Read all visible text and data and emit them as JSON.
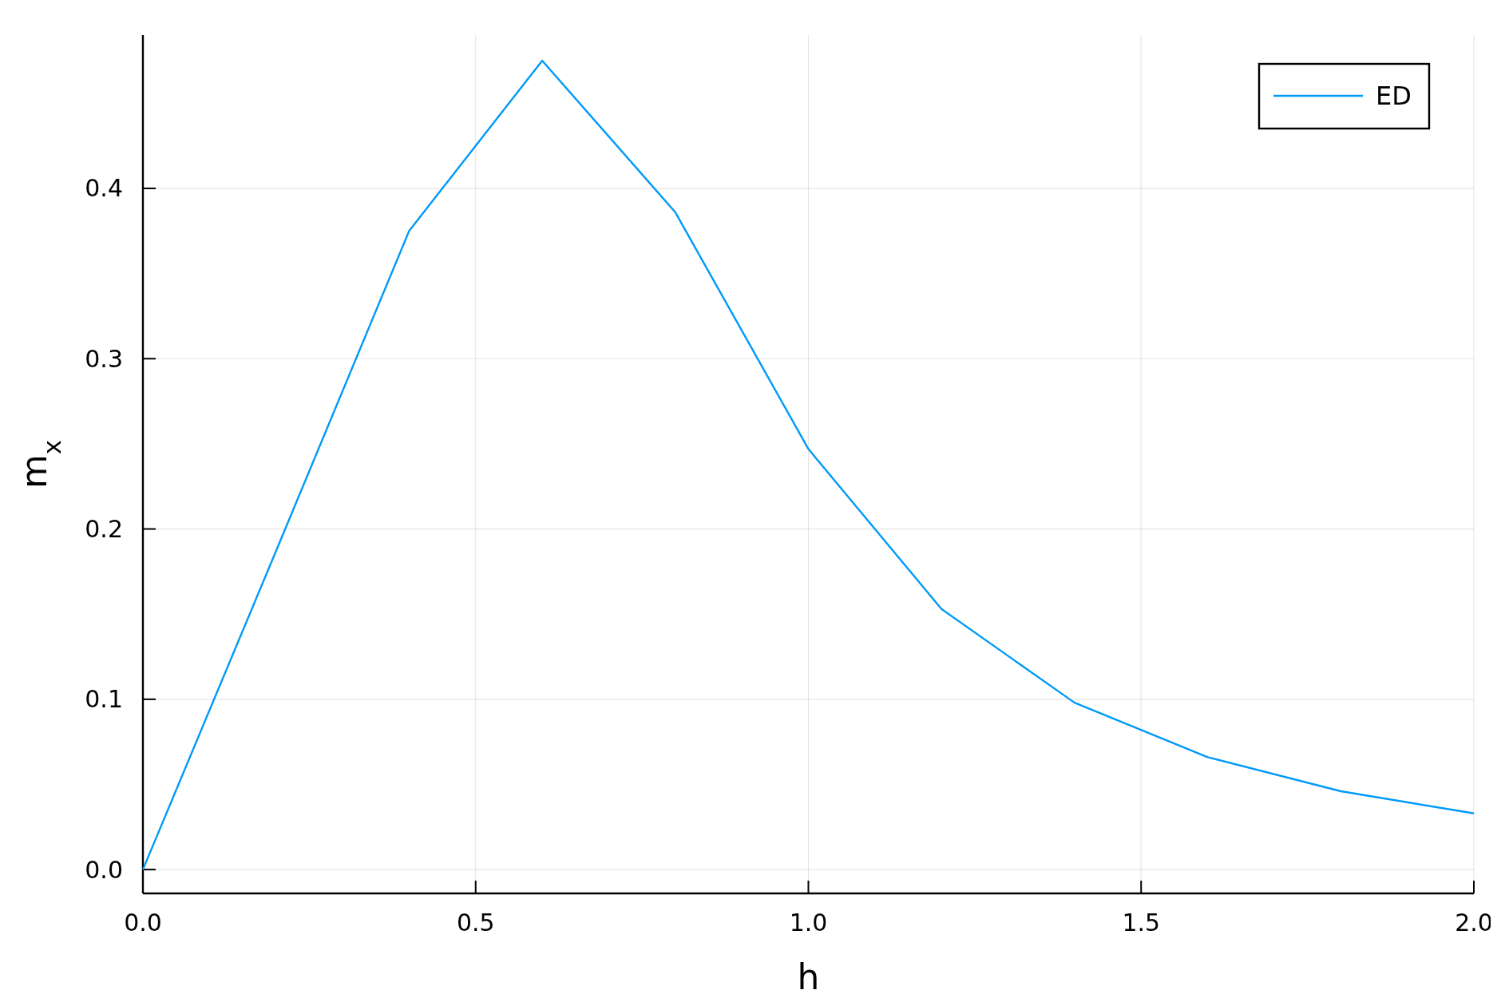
{
  "chart_data": {
    "type": "line",
    "xlabel": "h",
    "ylabel": "m$_{x}$",
    "x": [
      0,
      0.2,
      0.4,
      0.6,
      0.8,
      1.0,
      1.2,
      1.4,
      1.6,
      1.8,
      2.0
    ],
    "series": [
      {
        "name": "ED",
        "color": "#009af9",
        "values": [
          0,
          0.187,
          0.375,
          0.475,
          0.386,
          0.247,
          0.153,
          0.098,
          0.066,
          0.046,
          0.033
        ]
      }
    ],
    "xlim": [
      0,
      2
    ],
    "xticks": [
      {
        "value": 0,
        "label": "0.0"
      },
      {
        "value": 0.5,
        "label": "0.5"
      },
      {
        "value": 1,
        "label": "1.0"
      },
      {
        "value": 1.5,
        "label": "1.5"
      },
      {
        "value": 2,
        "label": "2.0"
      }
    ],
    "ylim": [
      -0.014,
      0.49
    ],
    "yticks": [
      {
        "value": 0,
        "label": "0.0"
      },
      {
        "value": 0.1,
        "label": "0.1"
      },
      {
        "value": 0.2,
        "label": "0.2"
      },
      {
        "value": 0.3,
        "label": "0.3"
      },
      {
        "value": 0.4,
        "label": "0.4"
      }
    ],
    "grid": true,
    "legend": "top right",
    "marker": "none",
    "line_style": "solid"
  }
}
